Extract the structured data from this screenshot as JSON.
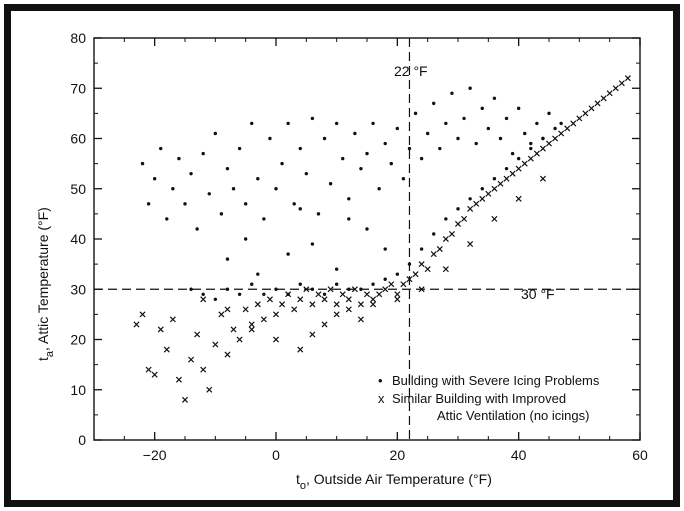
{
  "chart_data": {
    "type": "scatter",
    "xlabel_main": "t",
    "xlabel_sub": "o",
    "xlabel_rest": ", Outside Air Temperature (°F)",
    "ylabel_main": "t",
    "ylabel_sub": "a",
    "ylabel_rest": ", Attic Temperature (°F)",
    "xlim": [
      -30,
      60
    ],
    "ylim": [
      0,
      80
    ],
    "x_ticks": [
      -20,
      0,
      20,
      40,
      60
    ],
    "x_tick_labels": [
      "−20",
      "0",
      "20",
      "40",
      "60"
    ],
    "y_ticks": [
      0,
      10,
      20,
      30,
      40,
      50,
      60,
      70,
      80
    ],
    "y_tick_labels": [
      "0",
      "10",
      "20",
      "30",
      "40",
      "50",
      "60",
      "70",
      "80"
    ],
    "grid": false,
    "reference_lines": [
      {
        "orientation": "vertical",
        "value": 22,
        "label": "22 °F"
      },
      {
        "orientation": "horizontal",
        "value": 30,
        "label": "30 °F"
      }
    ],
    "legend": {
      "placement": "bottom-right",
      "entries": [
        {
          "marker": "•",
          "lines": [
            "Building with Severe Icing Problems"
          ]
        },
        {
          "marker": "x",
          "lines": [
            "Similar Building with Improved",
            "Attic Ventilation (no icings)"
          ]
        }
      ]
    },
    "series": [
      {
        "name": "Building with Severe Icing Problems",
        "marker": "dot",
        "points": [
          [
            -22,
            55
          ],
          [
            -21,
            47
          ],
          [
            -20,
            52
          ],
          [
            -19,
            58
          ],
          [
            -18,
            44
          ],
          [
            -17,
            50
          ],
          [
            -16,
            56
          ],
          [
            -15,
            47
          ],
          [
            -14,
            53
          ],
          [
            -13,
            42
          ],
          [
            -12,
            57
          ],
          [
            -11,
            49
          ],
          [
            -10,
            61
          ],
          [
            -9,
            45
          ],
          [
            -8,
            54
          ],
          [
            -7,
            50
          ],
          [
            -6,
            58
          ],
          [
            -5,
            47
          ],
          [
            -4,
            63
          ],
          [
            -3,
            52
          ],
          [
            -2,
            44
          ],
          [
            -1,
            60
          ],
          [
            0,
            50
          ],
          [
            1,
            55
          ],
          [
            2,
            63
          ],
          [
            3,
            47
          ],
          [
            4,
            58
          ],
          [
            5,
            53
          ],
          [
            6,
            64
          ],
          [
            7,
            45
          ],
          [
            8,
            60
          ],
          [
            9,
            51
          ],
          [
            10,
            63
          ],
          [
            11,
            56
          ],
          [
            12,
            48
          ],
          [
            13,
            61
          ],
          [
            14,
            54
          ],
          [
            15,
            57
          ],
          [
            16,
            63
          ],
          [
            17,
            50
          ],
          [
            18,
            59
          ],
          [
            19,
            55
          ],
          [
            20,
            62
          ],
          [
            21,
            52
          ],
          [
            22,
            58
          ],
          [
            23,
            65
          ],
          [
            24,
            56
          ],
          [
            25,
            61
          ],
          [
            26,
            67
          ],
          [
            27,
            58
          ],
          [
            28,
            63
          ],
          [
            29,
            69
          ],
          [
            30,
            60
          ],
          [
            31,
            64
          ],
          [
            32,
            70
          ],
          [
            33,
            59
          ],
          [
            34,
            66
          ],
          [
            35,
            62
          ],
          [
            36,
            68
          ],
          [
            37,
            60
          ],
          [
            38,
            64
          ],
          [
            39,
            57
          ],
          [
            40,
            66
          ],
          [
            41,
            61
          ],
          [
            42,
            59
          ],
          [
            43,
            63
          ],
          [
            44,
            60
          ],
          [
            45,
            65
          ],
          [
            46,
            62
          ],
          [
            47,
            63
          ],
          [
            -14,
            30
          ],
          [
            -12,
            29
          ],
          [
            -10,
            28
          ],
          [
            -8,
            30
          ],
          [
            -6,
            29
          ],
          [
            -4,
            31
          ],
          [
            -2,
            29
          ],
          [
            0,
            30
          ],
          [
            2,
            29
          ],
          [
            4,
            31
          ],
          [
            6,
            30
          ],
          [
            8,
            29
          ],
          [
            10,
            31
          ],
          [
            12,
            30
          ],
          [
            14,
            30
          ],
          [
            16,
            31
          ],
          [
            18,
            32
          ],
          [
            20,
            33
          ],
          [
            22,
            35
          ],
          [
            24,
            38
          ],
          [
            26,
            41
          ],
          [
            28,
            44
          ],
          [
            30,
            46
          ],
          [
            32,
            48
          ],
          [
            34,
            50
          ],
          [
            36,
            52
          ],
          [
            38,
            54
          ],
          [
            40,
            56
          ],
          [
            42,
            58
          ],
          [
            44,
            60
          ],
          [
            -8,
            36
          ],
          [
            -5,
            40
          ],
          [
            -3,
            33
          ],
          [
            2,
            37
          ],
          [
            6,
            39
          ],
          [
            10,
            34
          ],
          [
            15,
            42
          ],
          [
            18,
            38
          ],
          [
            12,
            44
          ],
          [
            4,
            46
          ]
        ]
      },
      {
        "name": "Similar Building with Improved Attic Ventilation (no icings)",
        "marker": "x",
        "points": [
          [
            -23,
            23
          ],
          [
            -22,
            25
          ],
          [
            -21,
            14
          ],
          [
            -20,
            13
          ],
          [
            -19,
            22
          ],
          [
            -18,
            18
          ],
          [
            -17,
            24
          ],
          [
            -16,
            12
          ],
          [
            -15,
            8
          ],
          [
            -14,
            16
          ],
          [
            -13,
            21
          ],
          [
            -12,
            14
          ],
          [
            -11,
            10
          ],
          [
            -10,
            19
          ],
          [
            -9,
            25
          ],
          [
            -8,
            17
          ],
          [
            -7,
            22
          ],
          [
            -6,
            20
          ],
          [
            -5,
            26
          ],
          [
            -4,
            23
          ],
          [
            -3,
            27
          ],
          [
            -2,
            24
          ],
          [
            -1,
            28
          ],
          [
            0,
            25
          ],
          [
            1,
            27
          ],
          [
            2,
            29
          ],
          [
            3,
            26
          ],
          [
            4,
            28
          ],
          [
            5,
            30
          ],
          [
            6,
            27
          ],
          [
            7,
            29
          ],
          [
            8,
            28
          ],
          [
            9,
            30
          ],
          [
            10,
            27
          ],
          [
            11,
            29
          ],
          [
            12,
            28
          ],
          [
            13,
            30
          ],
          [
            14,
            27
          ],
          [
            15,
            29
          ],
          [
            16,
            28
          ],
          [
            17,
            29
          ],
          [
            18,
            30
          ],
          [
            19,
            31
          ],
          [
            20,
            29
          ],
          [
            21,
            31
          ],
          [
            22,
            32
          ],
          [
            23,
            33
          ],
          [
            24,
            35
          ],
          [
            25,
            34
          ],
          [
            26,
            37
          ],
          [
            27,
            38
          ],
          [
            28,
            40
          ],
          [
            29,
            41
          ],
          [
            30,
            43
          ],
          [
            31,
            44
          ],
          [
            32,
            46
          ],
          [
            33,
            47
          ],
          [
            34,
            48
          ],
          [
            35,
            49
          ],
          [
            36,
            50
          ],
          [
            37,
            51
          ],
          [
            38,
            52
          ],
          [
            39,
            53
          ],
          [
            40,
            54
          ],
          [
            41,
            55
          ],
          [
            42,
            56
          ],
          [
            43,
            57
          ],
          [
            44,
            58
          ],
          [
            45,
            59
          ],
          [
            46,
            60
          ],
          [
            47,
            61
          ],
          [
            48,
            62
          ],
          [
            49,
            63
          ],
          [
            50,
            64
          ],
          [
            51,
            65
          ],
          [
            52,
            66
          ],
          [
            53,
            67
          ],
          [
            54,
            68
          ],
          [
            55,
            69
          ],
          [
            56,
            70
          ],
          [
            57,
            71
          ],
          [
            58,
            72
          ],
          [
            -12,
            28
          ],
          [
            -8,
            26
          ],
          [
            -4,
            22
          ],
          [
            0,
            20
          ],
          [
            4,
            18
          ],
          [
            6,
            21
          ],
          [
            8,
            23
          ],
          [
            10,
            25
          ],
          [
            12,
            26
          ],
          [
            14,
            24
          ],
          [
            16,
            27
          ],
          [
            20,
            28
          ],
          [
            24,
            30
          ],
          [
            28,
            34
          ],
          [
            32,
            39
          ],
          [
            36,
            44
          ],
          [
            40,
            48
          ],
          [
            44,
            52
          ]
        ]
      }
    ]
  }
}
